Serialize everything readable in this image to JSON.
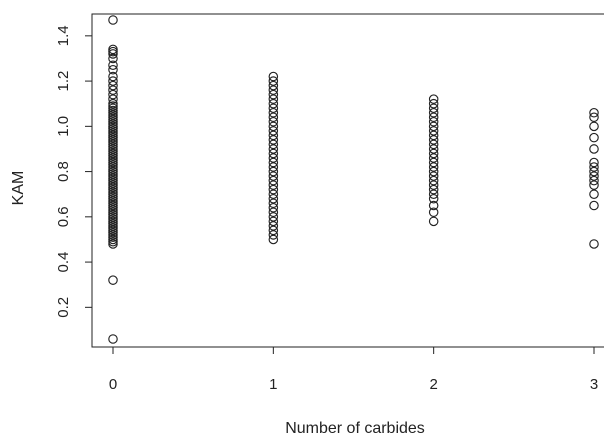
{
  "chart_data": {
    "type": "scatter",
    "title": "",
    "xlabel": "Number of carbides",
    "ylabel": "KAM",
    "xlim": [
      0,
      3
    ],
    "ylim": [
      0.06,
      1.47
    ],
    "x_ticks": [
      0,
      1,
      2,
      3
    ],
    "y_ticks": [
      0.2,
      0.4,
      0.6,
      0.8,
      1.0,
      1.2,
      1.4
    ],
    "x_tick_labels": [
      "0",
      "1",
      "2",
      "3"
    ],
    "y_tick_labels": [
      "0.2",
      "0.4",
      "0.6",
      "0.8",
      "1.0",
      "1.2",
      "1.4"
    ],
    "grid": false,
    "legend": "none",
    "marker": "open-circle",
    "marker_color": "#222222",
    "series": [
      {
        "points": [
          {
            "x": 0,
            "y": 0.06
          },
          {
            "x": 0,
            "y": 0.32
          },
          {
            "x": 0,
            "y": 0.48
          },
          {
            "x": 0,
            "y": 0.49
          },
          {
            "x": 0,
            "y": 0.5
          },
          {
            "x": 0,
            "y": 0.51
          },
          {
            "x": 0,
            "y": 0.52
          },
          {
            "x": 0,
            "y": 0.53
          },
          {
            "x": 0,
            "y": 0.54
          },
          {
            "x": 0,
            "y": 0.55
          },
          {
            "x": 0,
            "y": 0.56
          },
          {
            "x": 0,
            "y": 0.57
          },
          {
            "x": 0,
            "y": 0.58
          },
          {
            "x": 0,
            "y": 0.59
          },
          {
            "x": 0,
            "y": 0.6
          },
          {
            "x": 0,
            "y": 0.61
          },
          {
            "x": 0,
            "y": 0.62
          },
          {
            "x": 0,
            "y": 0.63
          },
          {
            "x": 0,
            "y": 0.64
          },
          {
            "x": 0,
            "y": 0.65
          },
          {
            "x": 0,
            "y": 0.66
          },
          {
            "x": 0,
            "y": 0.67
          },
          {
            "x": 0,
            "y": 0.68
          },
          {
            "x": 0,
            "y": 0.69
          },
          {
            "x": 0,
            "y": 0.7
          },
          {
            "x": 0,
            "y": 0.71
          },
          {
            "x": 0,
            "y": 0.72
          },
          {
            "x": 0,
            "y": 0.73
          },
          {
            "x": 0,
            "y": 0.74
          },
          {
            "x": 0,
            "y": 0.75
          },
          {
            "x": 0,
            "y": 0.76
          },
          {
            "x": 0,
            "y": 0.77
          },
          {
            "x": 0,
            "y": 0.78
          },
          {
            "x": 0,
            "y": 0.79
          },
          {
            "x": 0,
            "y": 0.8
          },
          {
            "x": 0,
            "y": 0.81
          },
          {
            "x": 0,
            "y": 0.82
          },
          {
            "x": 0,
            "y": 0.83
          },
          {
            "x": 0,
            "y": 0.84
          },
          {
            "x": 0,
            "y": 0.85
          },
          {
            "x": 0,
            "y": 0.86
          },
          {
            "x": 0,
            "y": 0.87
          },
          {
            "x": 0,
            "y": 0.88
          },
          {
            "x": 0,
            "y": 0.89
          },
          {
            "x": 0,
            "y": 0.9
          },
          {
            "x": 0,
            "y": 0.91
          },
          {
            "x": 0,
            "y": 0.92
          },
          {
            "x": 0,
            "y": 0.93
          },
          {
            "x": 0,
            "y": 0.94
          },
          {
            "x": 0,
            "y": 0.95
          },
          {
            "x": 0,
            "y": 0.96
          },
          {
            "x": 0,
            "y": 0.97
          },
          {
            "x": 0,
            "y": 0.98
          },
          {
            "x": 0,
            "y": 0.99
          },
          {
            "x": 0,
            "y": 1.0
          },
          {
            "x": 0,
            "y": 1.01
          },
          {
            "x": 0,
            "y": 1.02
          },
          {
            "x": 0,
            "y": 1.03
          },
          {
            "x": 0,
            "y": 1.04
          },
          {
            "x": 0,
            "y": 1.05
          },
          {
            "x": 0,
            "y": 1.06
          },
          {
            "x": 0,
            "y": 1.07
          },
          {
            "x": 0,
            "y": 1.08
          },
          {
            "x": 0,
            "y": 1.09
          },
          {
            "x": 0,
            "y": 1.1
          },
          {
            "x": 0,
            "y": 1.12
          },
          {
            "x": 0,
            "y": 1.14
          },
          {
            "x": 0,
            "y": 1.16
          },
          {
            "x": 0,
            "y": 1.18
          },
          {
            "x": 0,
            "y": 1.2
          },
          {
            "x": 0,
            "y": 1.22
          },
          {
            "x": 0,
            "y": 1.25
          },
          {
            "x": 0,
            "y": 1.27
          },
          {
            "x": 0,
            "y": 1.3
          },
          {
            "x": 0,
            "y": 1.32
          },
          {
            "x": 0,
            "y": 1.33
          },
          {
            "x": 0,
            "y": 1.34
          },
          {
            "x": 0,
            "y": 1.47
          },
          {
            "x": 1,
            "y": 0.5
          },
          {
            "x": 1,
            "y": 0.52
          },
          {
            "x": 1,
            "y": 0.54
          },
          {
            "x": 1,
            "y": 0.56
          },
          {
            "x": 1,
            "y": 0.58
          },
          {
            "x": 1,
            "y": 0.6
          },
          {
            "x": 1,
            "y": 0.62
          },
          {
            "x": 1,
            "y": 0.64
          },
          {
            "x": 1,
            "y": 0.66
          },
          {
            "x": 1,
            "y": 0.68
          },
          {
            "x": 1,
            "y": 0.7
          },
          {
            "x": 1,
            "y": 0.72
          },
          {
            "x": 1,
            "y": 0.74
          },
          {
            "x": 1,
            "y": 0.76
          },
          {
            "x": 1,
            "y": 0.78
          },
          {
            "x": 1,
            "y": 0.8
          },
          {
            "x": 1,
            "y": 0.82
          },
          {
            "x": 1,
            "y": 0.84
          },
          {
            "x": 1,
            "y": 0.86
          },
          {
            "x": 1,
            "y": 0.88
          },
          {
            "x": 1,
            "y": 0.9
          },
          {
            "x": 1,
            "y": 0.92
          },
          {
            "x": 1,
            "y": 0.94
          },
          {
            "x": 1,
            "y": 0.96
          },
          {
            "x": 1,
            "y": 0.98
          },
          {
            "x": 1,
            "y": 1.0
          },
          {
            "x": 1,
            "y": 1.02
          },
          {
            "x": 1,
            "y": 1.04
          },
          {
            "x": 1,
            "y": 1.06
          },
          {
            "x": 1,
            "y": 1.08
          },
          {
            "x": 1,
            "y": 1.1
          },
          {
            "x": 1,
            "y": 1.12
          },
          {
            "x": 1,
            "y": 1.14
          },
          {
            "x": 1,
            "y": 1.16
          },
          {
            "x": 1,
            "y": 1.18
          },
          {
            "x": 1,
            "y": 1.2
          },
          {
            "x": 1,
            "y": 1.22
          },
          {
            "x": 2,
            "y": 0.58
          },
          {
            "x": 2,
            "y": 0.62
          },
          {
            "x": 2,
            "y": 0.65
          },
          {
            "x": 2,
            "y": 0.68
          },
          {
            "x": 2,
            "y": 0.7
          },
          {
            "x": 2,
            "y": 0.72
          },
          {
            "x": 2,
            "y": 0.74
          },
          {
            "x": 2,
            "y": 0.76
          },
          {
            "x": 2,
            "y": 0.78
          },
          {
            "x": 2,
            "y": 0.8
          },
          {
            "x": 2,
            "y": 0.82
          },
          {
            "x": 2,
            "y": 0.84
          },
          {
            "x": 2,
            "y": 0.86
          },
          {
            "x": 2,
            "y": 0.88
          },
          {
            "x": 2,
            "y": 0.9
          },
          {
            "x": 2,
            "y": 0.92
          },
          {
            "x": 2,
            "y": 0.94
          },
          {
            "x": 2,
            "y": 0.96
          },
          {
            "x": 2,
            "y": 0.98
          },
          {
            "x": 2,
            "y": 1.0
          },
          {
            "x": 2,
            "y": 1.02
          },
          {
            "x": 2,
            "y": 1.04
          },
          {
            "x": 2,
            "y": 1.06
          },
          {
            "x": 2,
            "y": 1.08
          },
          {
            "x": 2,
            "y": 1.1
          },
          {
            "x": 2,
            "y": 1.12
          },
          {
            "x": 3,
            "y": 0.48
          },
          {
            "x": 3,
            "y": 0.65
          },
          {
            "x": 3,
            "y": 0.7
          },
          {
            "x": 3,
            "y": 0.74
          },
          {
            "x": 3,
            "y": 0.76
          },
          {
            "x": 3,
            "y": 0.78
          },
          {
            "x": 3,
            "y": 0.8
          },
          {
            "x": 3,
            "y": 0.82
          },
          {
            "x": 3,
            "y": 0.84
          },
          {
            "x": 3,
            "y": 0.9
          },
          {
            "x": 3,
            "y": 0.95
          },
          {
            "x": 3,
            "y": 1.0
          },
          {
            "x": 3,
            "y": 1.04
          },
          {
            "x": 3,
            "y": 1.06
          }
        ]
      }
    ]
  }
}
